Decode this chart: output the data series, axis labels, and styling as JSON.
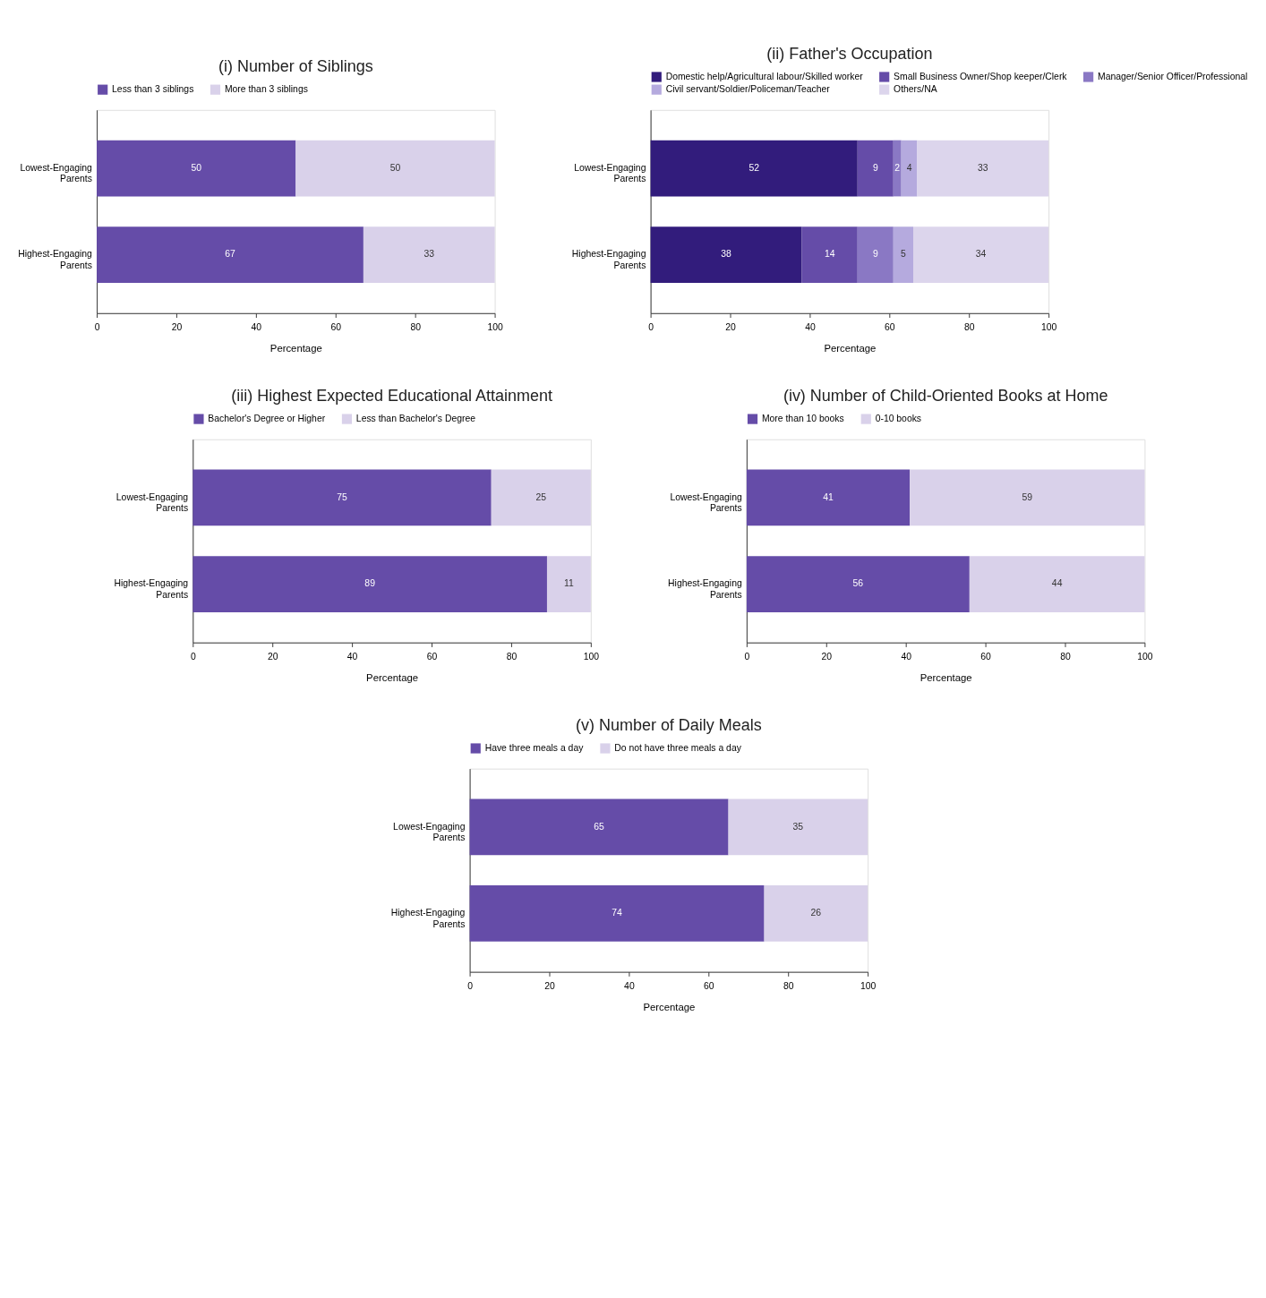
{
  "chart_data": [
    {
      "type": "bar",
      "title": "(i) Number of Siblings",
      "orientation": "horizontal",
      "stacked": true,
      "data_labels": true,
      "legend": "top",
      "grid": false,
      "xlabel": "Percentage",
      "categories": [
        "Lowest-Engaging Parents",
        "Highest-Engaging Parents"
      ],
      "xlim": [
        0,
        100
      ],
      "xticks": [
        0,
        20,
        40,
        60,
        80,
        100
      ],
      "series": [
        {
          "name": "Less than 3 siblings",
          "color": "#654ca8",
          "values": [
            50,
            67
          ]
        },
        {
          "name": "More than 3 siblings",
          "color": "#d9d1ea",
          "values": [
            50,
            33
          ]
        }
      ]
    },
    {
      "type": "bar",
      "title": "(ii) Father's Occupation",
      "orientation": "horizontal",
      "stacked": true,
      "data_labels": true,
      "legend": "top",
      "grid": false,
      "xlabel": "Percentage",
      "categories": [
        "Lowest-Engaging Parents",
        "Highest-Engaging Parents"
      ],
      "xlim": [
        0,
        100
      ],
      "xticks": [
        0,
        20,
        40,
        60,
        80,
        100
      ],
      "series": [
        {
          "name": "Domestic help/Agricultural labour/Skilled worker",
          "color": "#321c7c",
          "values": [
            52,
            38
          ]
        },
        {
          "name": "Small Business Owner/Shop keeper/Clerk",
          "color": "#654ca8",
          "values": [
            9,
            14
          ]
        },
        {
          "name": "Manager/Senior Officer/Professional",
          "color": "#8a78c4",
          "values": [
            2,
            9
          ]
        },
        {
          "name": "Civil servant/Soldier/Policeman/Teacher",
          "color": "#b5aade",
          "values": [
            4,
            5
          ]
        },
        {
          "name": "Others/NA",
          "color": "#dcd5ec",
          "values": [
            33,
            34
          ]
        }
      ]
    },
    {
      "type": "bar",
      "title": "(iii) Highest Expected Educational Attainment",
      "orientation": "horizontal",
      "stacked": true,
      "data_labels": true,
      "legend": "top",
      "grid": false,
      "xlabel": "Percentage",
      "categories": [
        "Lowest-Engaging Parents",
        "Highest-Engaging Parents"
      ],
      "xlim": [
        0,
        100
      ],
      "xticks": [
        0,
        20,
        40,
        60,
        80,
        100
      ],
      "series": [
        {
          "name": "Bachelor's Degree or Higher",
          "color": "#654ca8",
          "values": [
            75,
            89
          ]
        },
        {
          "name": "Less than Bachelor's Degree",
          "color": "#d9d1ea",
          "values": [
            25,
            11
          ]
        }
      ]
    },
    {
      "type": "bar",
      "title": "(iv) Number of Child-Oriented Books at Home",
      "orientation": "horizontal",
      "stacked": true,
      "data_labels": true,
      "legend": "top",
      "grid": false,
      "xlabel": "Percentage",
      "categories": [
        "Lowest-Engaging Parents",
        "Highest-Engaging Parents"
      ],
      "xlim": [
        0,
        100
      ],
      "xticks": [
        0,
        20,
        40,
        60,
        80,
        100
      ],
      "series": [
        {
          "name": "More than 10 books",
          "color": "#654ca8",
          "values": [
            41,
            56
          ]
        },
        {
          "name": "0-10 books",
          "color": "#d9d1ea",
          "values": [
            59,
            44
          ]
        }
      ]
    },
    {
      "type": "bar",
      "title": "(v) Number of Daily Meals",
      "orientation": "horizontal",
      "stacked": true,
      "data_labels": true,
      "legend": "top",
      "grid": false,
      "xlabel": "Percentage",
      "categories": [
        "Lowest-Engaging Parents",
        "Highest-Engaging Parents"
      ],
      "xlim": [
        0,
        100
      ],
      "xticks": [
        0,
        20,
        40,
        60,
        80,
        100
      ],
      "series": [
        {
          "name": "Have three meals a day",
          "color": "#654ca8",
          "values": [
            65,
            74
          ]
        },
        {
          "name": "Do not have three meals a day",
          "color": "#d9d1ea",
          "values": [
            35,
            26
          ]
        }
      ]
    }
  ]
}
